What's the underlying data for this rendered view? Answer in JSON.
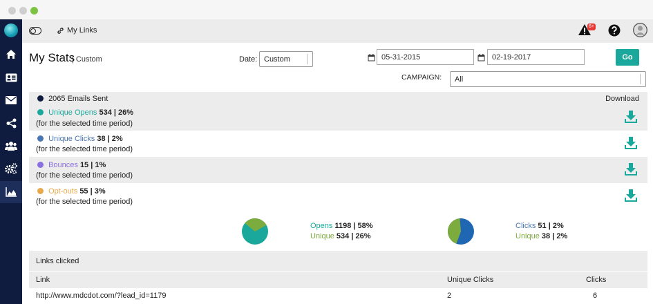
{
  "colors": {
    "sidebar": "#0f1c3f",
    "accent": "#19a89b",
    "opens": "#19a89b",
    "clicks": "#4a77b4",
    "bounces": "#8a6fe0",
    "optouts": "#e9a94b",
    "emails_dot": "#0f1c3f"
  },
  "sidebar": {
    "items": [
      {
        "icon": "home-icon"
      },
      {
        "icon": "contact-card-icon"
      },
      {
        "icon": "envelope-icon"
      },
      {
        "icon": "share-icon"
      },
      {
        "icon": "users-icon"
      },
      {
        "icon": "gears-icon"
      },
      {
        "icon": "area-chart-icon",
        "active": true
      }
    ]
  },
  "topbar": {
    "mylinks_label": "My Links",
    "alert_badge": "6+"
  },
  "header": {
    "title": "My Stats",
    "subtitle": "| Custom",
    "date_label": "Date:",
    "date_select": "Custom",
    "date_from": "05-31-2015",
    "date_to": "02-19-2017",
    "go_label": "Go",
    "campaign_label": "CAMPAIGN:",
    "campaign_select": "All"
  },
  "stats": {
    "emails_sent": "2065 Emails Sent",
    "download_label": "Download",
    "period_note": "(for the selected time period)",
    "rows": [
      {
        "label": "Unique Opens",
        "value": "534 | 26%"
      },
      {
        "label": "Unique Clicks",
        "value": "38 | 2%"
      },
      {
        "label": "Bounces",
        "value": "15 | 1%"
      },
      {
        "label": "Opt-outs",
        "value": "55 | 3%"
      }
    ]
  },
  "pies": {
    "opens": {
      "line1_label": "Opens",
      "line1_value": "1198 | 58%",
      "line2_label": "Unique",
      "line2_value": "534 | 26%",
      "unique_fraction": 0.31
    },
    "clicks": {
      "line1_label": "Clicks",
      "line1_value": "51 | 2%",
      "line2_label": "Unique",
      "line2_value": "38 | 2%",
      "unique_fraction": 0.43
    }
  },
  "links": {
    "section_title": "Links clicked",
    "columns": [
      "Link",
      "Unique Clicks",
      "Clicks"
    ],
    "rows": [
      {
        "link": "http://www.mdcdot.com/?lead_id=1179",
        "unique": "2",
        "clicks": "6"
      }
    ]
  }
}
